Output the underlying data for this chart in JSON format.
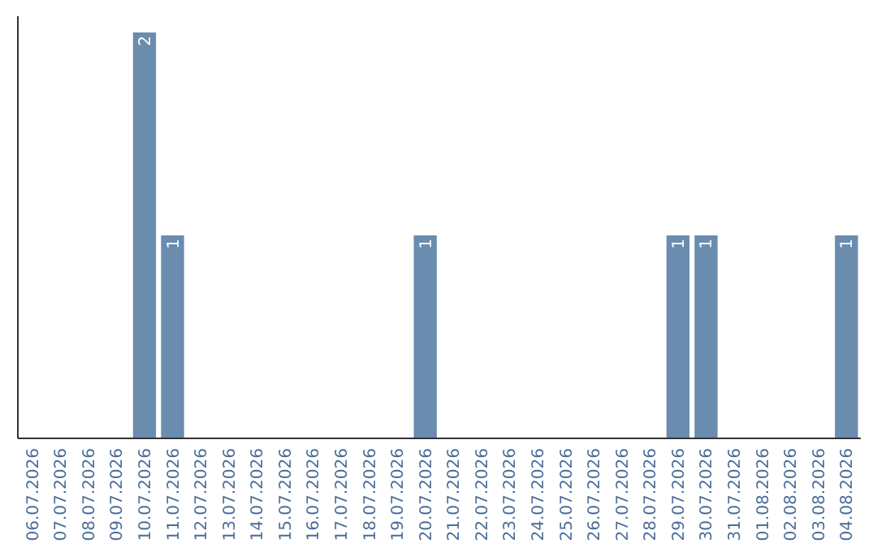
{
  "chart_data": {
    "type": "bar",
    "categories": [
      "06.07.2026",
      "07.07.2026",
      "08.07.2026",
      "09.07.2026",
      "10.07.2026",
      "11.07.2026",
      "12.07.2026",
      "13.07.2026",
      "14.07.2026",
      "15.07.2026",
      "16.07.2026",
      "17.07.2026",
      "18.07.2026",
      "19.07.2026",
      "20.07.2026",
      "21.07.2026",
      "22.07.2026",
      "23.07.2026",
      "24.07.2026",
      "25.07.2026",
      "26.07.2026",
      "27.07.2026",
      "28.07.2026",
      "29.07.2026",
      "30.07.2026",
      "31.07.2026",
      "01.08.2026",
      "02.08.2026",
      "03.08.2026",
      "04.08.2026"
    ],
    "values": [
      0,
      0,
      0,
      0,
      2,
      1,
      0,
      0,
      0,
      0,
      0,
      0,
      0,
      0,
      1,
      0,
      0,
      0,
      0,
      0,
      0,
      0,
      0,
      1,
      1,
      0,
      0,
      0,
      0,
      1
    ],
    "value_labels": [
      null,
      null,
      null,
      null,
      "2",
      "1",
      null,
      null,
      null,
      null,
      null,
      null,
      null,
      null,
      "1",
      null,
      null,
      null,
      null,
      null,
      null,
      null,
      null,
      "1",
      "1",
      null,
      null,
      null,
      null,
      "1"
    ],
    "color": "#6a8caf",
    "tick_labels": "x"
  }
}
